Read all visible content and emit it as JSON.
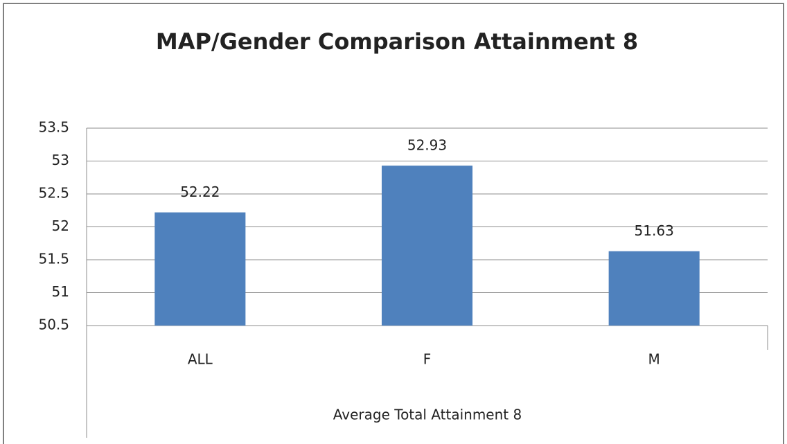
{
  "chart_data": {
    "type": "bar",
    "title": "MAP/Gender Comparison Attainment 8",
    "categories": [
      "ALL",
      "F",
      "M"
    ],
    "values": [
      52.22,
      52.93,
      51.63
    ],
    "color": "#4f81bd",
    "xlabel": "Average Total Attainment 8",
    "ylim": [
      50.5,
      53.5
    ],
    "yticks": [
      50.5,
      51,
      51.5,
      52,
      52.5,
      53,
      53.5
    ],
    "grid": true
  }
}
